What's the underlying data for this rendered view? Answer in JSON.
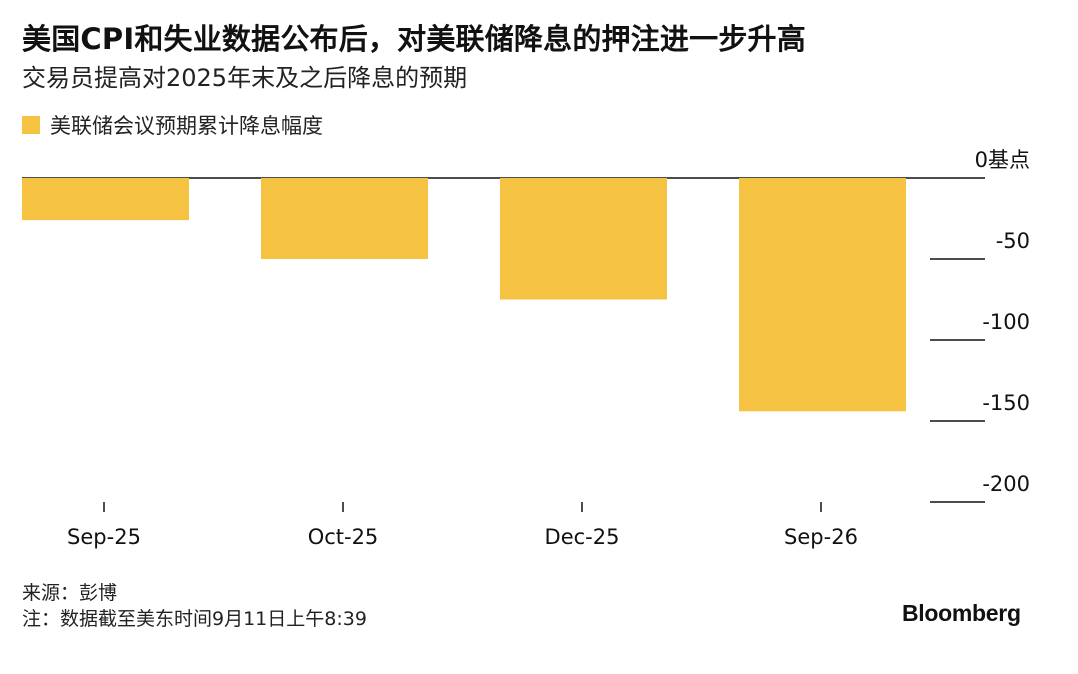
{
  "header": {
    "title": "美国CPI和失业数据公布后，对美联储降息的押注进一步升高",
    "subtitle": "交易员提高对2025年末及之后降息的预期"
  },
  "legend": {
    "label": "美联储会议预期累计降息幅度",
    "color": "#f5c242"
  },
  "chart_data": {
    "type": "bar",
    "categories": [
      "Sep-25",
      "Oct-25",
      "Dec-25",
      "Sep-26"
    ],
    "series": [
      {
        "name": "美联储会议预期累计降息幅度",
        "values": [
          -26,
          -50,
          -75,
          -144
        ]
      }
    ],
    "ylim": [
      -200,
      0
    ],
    "yticks": [
      0,
      -50,
      -100,
      -150,
      -200
    ],
    "ytick_labels": [
      "0基点",
      "-50",
      "-100",
      "-150",
      "-200"
    ],
    "axis_side": "right",
    "bar_color": "#f5c242"
  },
  "footer": {
    "source": "来源：彭博",
    "note": "注：数据截至美东时间9月11日上午8:39",
    "brand": "Bloomberg"
  }
}
